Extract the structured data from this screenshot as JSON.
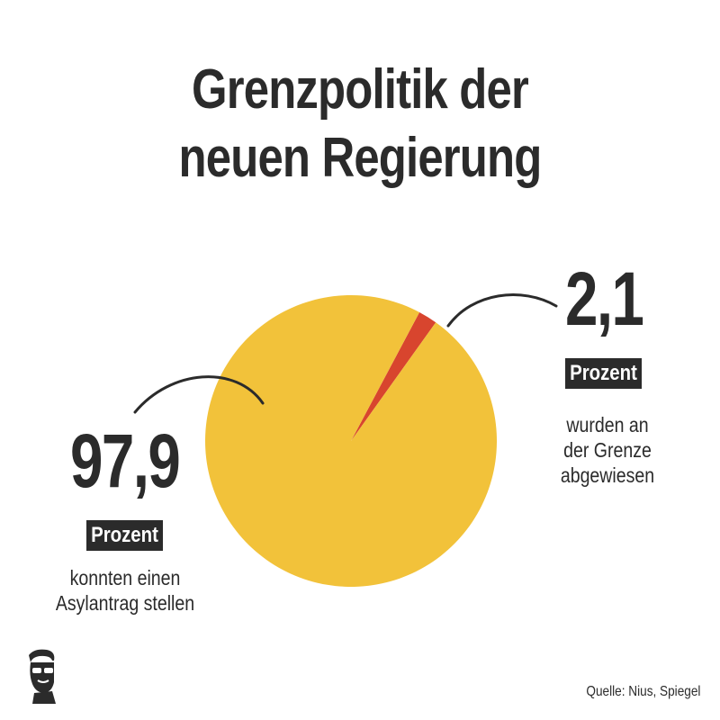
{
  "title": {
    "line1": "Grenzpolitik der",
    "line2": "neuen Regierung"
  },
  "left_callout": {
    "value": "97,9",
    "badge": "Prozent",
    "desc_line1": "konnten einen",
    "desc_line2": "Asylantrag stellen"
  },
  "right_callout": {
    "value": "2,1",
    "badge": "Prozent",
    "desc_line1": "wurden an",
    "desc_line2": "der Grenze",
    "desc_line3": "abgewiesen"
  },
  "source": "Quelle: Nius, Spiegel",
  "logo_icon": "person-with-sunglasses-icon",
  "colors": {
    "main_slice": "#f2c23a",
    "small_slice": "#d8452e",
    "text": "#2b2b2b"
  },
  "chart_data": {
    "type": "pie",
    "labels": [
      "konnten einen Asylantrag stellen",
      "wurden an der Grenze abgewiesen"
    ],
    "values": [
      97.9,
      2.1
    ],
    "unit": "Prozent"
  }
}
